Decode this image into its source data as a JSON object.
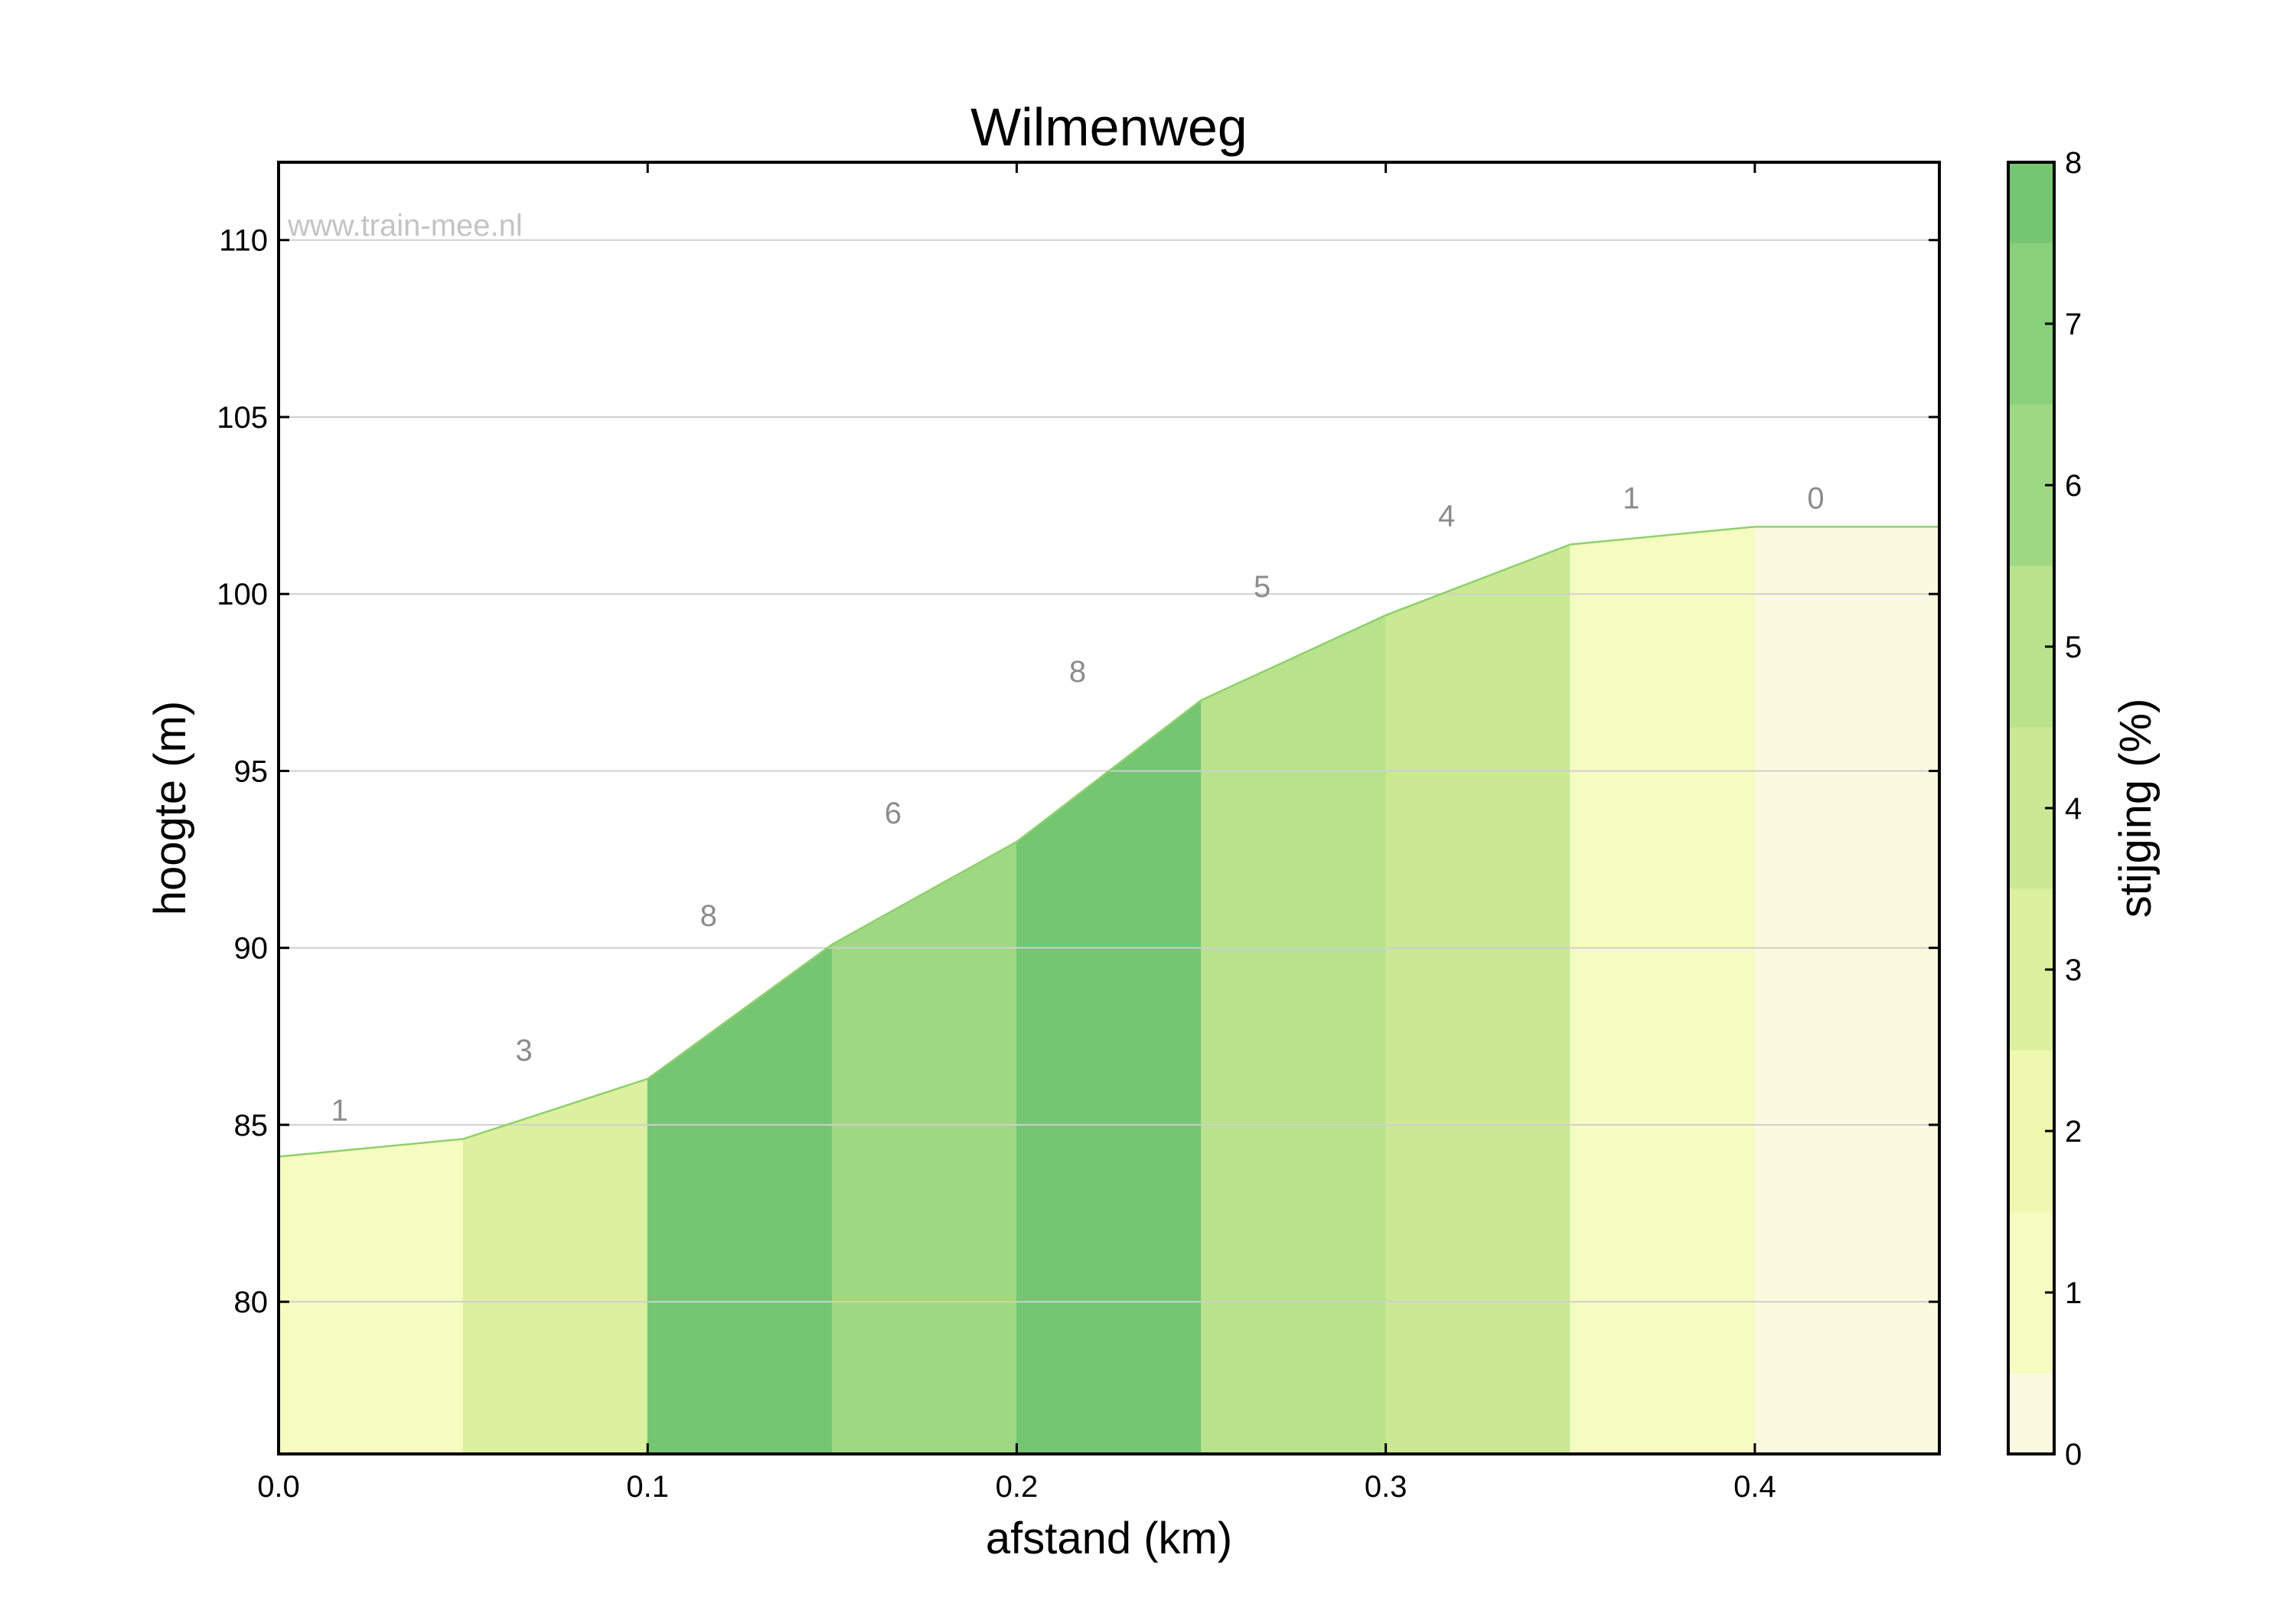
{
  "chart_data": {
    "type": "area",
    "title": "Wilmenweg",
    "xlabel": "afstand (km)",
    "ylabel": "hoogte (m)",
    "watermark": "www.train-mee.nl",
    "xlim": [
      0.0,
      0.45
    ],
    "ylim": [
      75.7,
      112.2
    ],
    "xticks": [
      "0.0",
      "0.1",
      "0.2",
      "0.3",
      "0.4"
    ],
    "yticks": [
      "80",
      "85",
      "90",
      "95",
      "100",
      "105",
      "110"
    ],
    "grid": true,
    "points": [
      {
        "x": 0.0,
        "y": 84.1
      },
      {
        "x": 0.05,
        "y": 84.6
      },
      {
        "x": 0.1,
        "y": 86.3
      },
      {
        "x": 0.15,
        "y": 90.1
      },
      {
        "x": 0.2,
        "y": 93.0
      },
      {
        "x": 0.25,
        "y": 97.0
      },
      {
        "x": 0.3,
        "y": 99.4
      },
      {
        "x": 0.35,
        "y": 101.4
      },
      {
        "x": 0.4,
        "y": 101.9
      },
      {
        "x": 0.45,
        "y": 101.9
      }
    ],
    "segment_grades": [
      "1",
      "3",
      "8",
      "6",
      "8",
      "5",
      "4",
      "1",
      "0"
    ],
    "colorbar": {
      "label": "stijging (%)",
      "ticks": [
        "0",
        "1",
        "2",
        "3",
        "4",
        "5",
        "6",
        "7",
        "8"
      ],
      "colors": [
        "#fbf9df",
        "#f6fbc0",
        "#eef8ae",
        "#ddf0a0",
        "#cbe995",
        "#b8e28c",
        "#9fd883",
        "#89d07b",
        "#74c672"
      ]
    }
  }
}
